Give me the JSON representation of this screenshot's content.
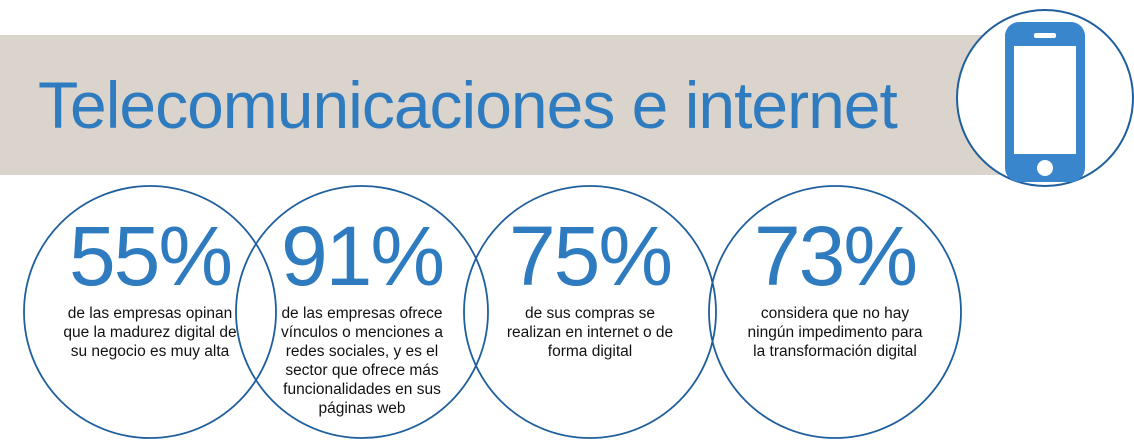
{
  "header": {
    "title": "Telecomunicaciones e internet"
  },
  "stats": [
    {
      "value": "55%",
      "lines": [
        "de las empresas opinan",
        "que la madurez digital de",
        "su negocio es muy alta"
      ]
    },
    {
      "value": "91%",
      "lines": [
        "de las empresas ofrece",
        "vínculos o menciones a",
        "redes sociales, y es el",
        "sector que ofrece más",
        "funcionalidades en sus",
        "páginas web"
      ]
    },
    {
      "value": "75%",
      "lines": [
        "de sus compras se",
        "realizan en internet o de",
        "forma digital"
      ]
    },
    {
      "value": "73%",
      "lines": [
        "considera que no hay",
        "ningún impedimento para",
        "la transformación digital"
      ]
    }
  ]
}
